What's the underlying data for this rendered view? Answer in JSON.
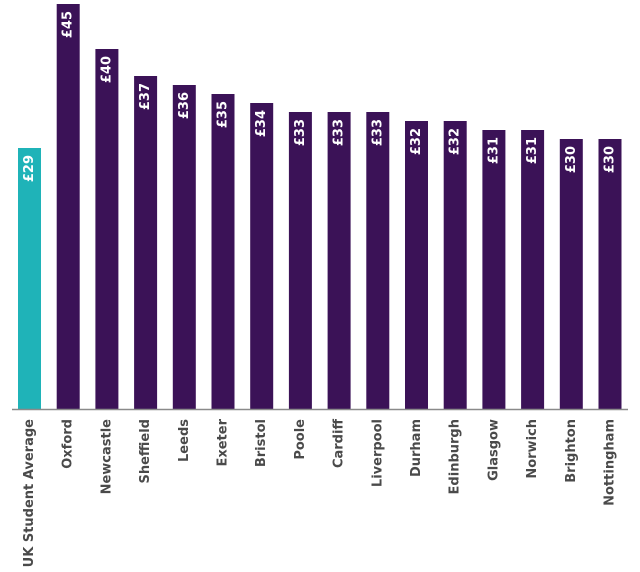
{
  "chart_data": {
    "type": "bar",
    "title": "",
    "xlabel": "",
    "ylabel": "",
    "ylim": [
      0,
      45
    ],
    "grid": false,
    "legend": "none",
    "categories": [
      "UK Student Average",
      "Oxford",
      "Newcastle",
      "Sheffield",
      "Leeds",
      "Exeter",
      "Bristol",
      "Poole",
      "Cardiff",
      "Liverpool",
      "Durham",
      "Edinburgh",
      "Glasgow",
      "Norwich",
      "Brighton",
      "Nottingham"
    ],
    "values": [
      29,
      45,
      40,
      37,
      36,
      35,
      34,
      33,
      33,
      33,
      32,
      32,
      31,
      31,
      30,
      30
    ],
    "value_labels": [
      "£29",
      "£45",
      "£40",
      "£37",
      "£36",
      "£35",
      "£34",
      "£33",
      "£33",
      "£33",
      "£32",
      "£32",
      "£31",
      "£31",
      "£30",
      "£30"
    ],
    "colors": {
      "highlight": "#1fb3b8",
      "default": "#3b1257",
      "axis": "#8a8a8a",
      "label": "#4a4a4a"
    },
    "highlight_index": 0
  }
}
